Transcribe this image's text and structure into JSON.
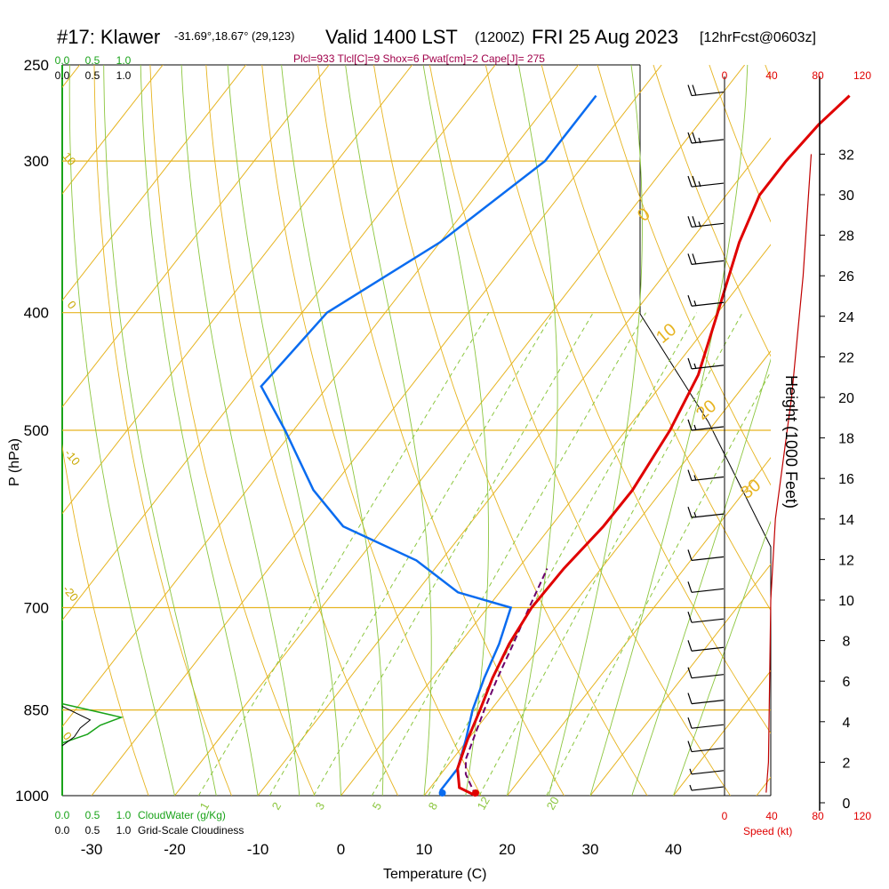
{
  "header": {
    "station": "#17: Klawer",
    "coords": "-31.69°,18.67° (29,123)",
    "valid": "Valid 1400 LST",
    "zulu": "(1200Z)",
    "date": "FRI 25 Aug 2023",
    "forecast": "[12hrFcst@0603z]",
    "indices": "Plcl=933 Tlcl[C]=9 Shox=6 Pwat[cm]=2 Cape[J]= 275"
  },
  "labels": {
    "pressure_axis": "P (hPa)",
    "temperature_axis": "Temperature (C)",
    "height_axis": "Height (1000 Feet)",
    "speed_axis": "Speed (kt)",
    "cloudwater": "CloudWater (g/Kg)",
    "cloudiness": "Grid-Scale Cloudiness"
  },
  "colors": {
    "temperature": "#e00000",
    "dewpoint": "#0a6cf0",
    "parcel": "#6b006b",
    "isotherm": "#e6b420",
    "adiabat": "#8cc63f",
    "cloudwater": "#1aa31a",
    "speed": "#c00000"
  },
  "chart_data": {
    "type": "skew-t",
    "pressure_ticks": [
      "250",
      "300",
      "400",
      "500",
      "700",
      "850",
      "1000"
    ],
    "pressure_values": [
      250,
      300,
      400,
      500,
      700,
      850,
      1000
    ],
    "temperature_ticks": [
      "-30",
      "-20",
      "-10",
      "0",
      "10",
      "20",
      "30",
      "40"
    ],
    "temperature_values": [
      -30,
      -20,
      -10,
      0,
      10,
      20,
      30,
      40
    ],
    "height_ticks": [
      "0",
      "2",
      "4",
      "6",
      "8",
      "10",
      "12",
      "14",
      "16",
      "18",
      "20",
      "22",
      "24",
      "26",
      "28",
      "30",
      "32"
    ],
    "speed_ticks": [
      "0",
      "40",
      "80",
      "120"
    ],
    "cloudwater_ticks": [
      "0.0",
      "0.5",
      "1.0"
    ],
    "cloudiness_ticks": [
      "0.0",
      "0.5",
      "1.0"
    ],
    "isotherm_labels": [
      "10",
      "0",
      "-10",
      "-20",
      "0",
      "10",
      "20",
      "30"
    ],
    "adiabat_labels": [
      "1",
      "2",
      "3",
      "5",
      "8",
      "12",
      "20"
    ],
    "temperature_profile": [
      {
        "p": 1000,
        "t": 16.2
      },
      {
        "p": 985,
        "t": 13.5
      },
      {
        "p": 950,
        "t": 11.5
      },
      {
        "p": 900,
        "t": 10.0
      },
      {
        "p": 850,
        "t": 8.7
      },
      {
        "p": 800,
        "t": 7.2
      },
      {
        "p": 750,
        "t": 6.0
      },
      {
        "p": 700,
        "t": 5.3
      },
      {
        "p": 650,
        "t": 5.5
      },
      {
        "p": 600,
        "t": 6.3
      },
      {
        "p": 560,
        "t": 6.4
      },
      {
        "p": 500,
        "t": 5.3
      },
      {
        "p": 450,
        "t": 3.5
      },
      {
        "p": 400,
        "t": 0.0
      },
      {
        "p": 350,
        "t": -4.0
      },
      {
        "p": 320,
        "t": -6.0
      },
      {
        "p": 300,
        "t": -6.0
      },
      {
        "p": 280,
        "t": -5.5
      },
      {
        "p": 265,
        "t": -4.5
      }
    ],
    "dewpoint_profile": [
      {
        "p": 1000,
        "t": 12.2
      },
      {
        "p": 990,
        "t": 11.5
      },
      {
        "p": 950,
        "t": 11.5
      },
      {
        "p": 900,
        "t": 9.8
      },
      {
        "p": 850,
        "t": 7.8
      },
      {
        "p": 800,
        "t": 6.2
      },
      {
        "p": 750,
        "t": 4.8
      },
      {
        "p": 700,
        "t": 2.8
      },
      {
        "p": 680,
        "t": -5.0
      },
      {
        "p": 640,
        "t": -13.0
      },
      {
        "p": 600,
        "t": -25.0
      },
      {
        "p": 560,
        "t": -32.0
      },
      {
        "p": 500,
        "t": -41.0
      },
      {
        "p": 460,
        "t": -48.0
      },
      {
        "p": 400,
        "t": -47.0
      },
      {
        "p": 350,
        "t": -40.0
      },
      {
        "p": 300,
        "t": -35.0
      },
      {
        "p": 265,
        "t": -35.0
      }
    ],
    "parcel_profile": [
      {
        "p": 1000,
        "t": 16.2
      },
      {
        "p": 960,
        "t": 13.0
      },
      {
        "p": 933,
        "t": 11.6
      },
      {
        "p": 850,
        "t": 9.2
      },
      {
        "p": 800,
        "t": 7.8
      },
      {
        "p": 750,
        "t": 6.5
      },
      {
        "p": 700,
        "t": 5.0
      },
      {
        "p": 650,
        "t": 3.5
      }
    ],
    "surface_temperature": 16.2,
    "surface_dewpoint": 12.2,
    "wind_barbs": [
      {
        "p": 265,
        "speed": 20
      },
      {
        "p": 290,
        "speed": 25
      },
      {
        "p": 315,
        "speed": 25
      },
      {
        "p": 340,
        "speed": 25
      },
      {
        "p": 365,
        "speed": 20
      },
      {
        "p": 395,
        "speed": 15
      },
      {
        "p": 445,
        "speed": 15
      },
      {
        "p": 500,
        "speed": 15
      },
      {
        "p": 550,
        "speed": 15
      },
      {
        "p": 590,
        "speed": 15
      },
      {
        "p": 640,
        "speed": 10
      },
      {
        "p": 680,
        "speed": 10
      },
      {
        "p": 720,
        "speed": 10
      },
      {
        "p": 760,
        "speed": 10
      },
      {
        "p": 800,
        "speed": 10
      },
      {
        "p": 840,
        "speed": 10
      },
      {
        "p": 880,
        "speed": 10
      },
      {
        "p": 920,
        "speed": 10
      },
      {
        "p": 960,
        "speed": 5
      },
      {
        "p": 990,
        "speed": 5
      }
    ],
    "speed_profile": [
      {
        "h": 0.5,
        "kt": 36
      },
      {
        "h": 2,
        "kt": 38
      },
      {
        "h": 6,
        "kt": 39
      },
      {
        "h": 10,
        "kt": 40
      },
      {
        "h": 14,
        "kt": 44
      },
      {
        "h": 20,
        "kt": 58
      },
      {
        "h": 26,
        "kt": 68
      },
      {
        "h": 32,
        "kt": 75
      }
    ],
    "cloudwater_profile": [
      {
        "p": 840,
        "v": 0.0
      },
      {
        "p": 862,
        "v": 0.7
      },
      {
        "p": 875,
        "v": 0.45
      },
      {
        "p": 890,
        "v": 0.3
      },
      {
        "p": 905,
        "v": 0.0
      }
    ]
  }
}
